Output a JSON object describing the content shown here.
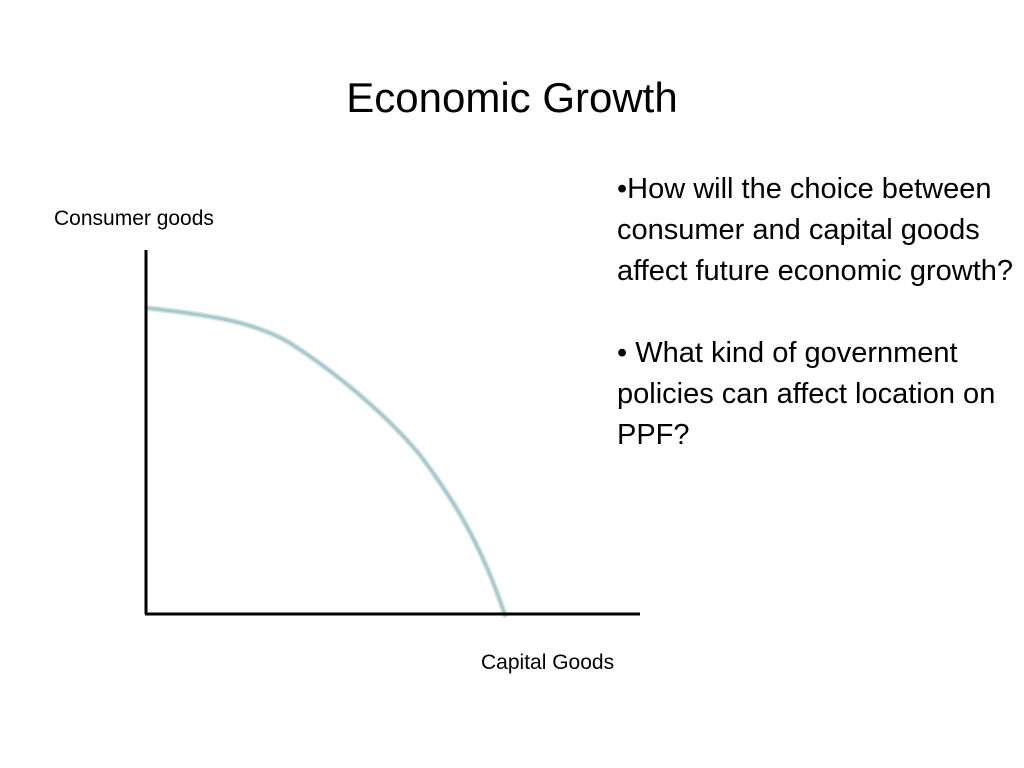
{
  "slide": {
    "title": "Economic Growth"
  },
  "diagram": {
    "y_axis_label": "Consumer goods",
    "x_axis_label": "Capital Goods",
    "curve_color": "#a9c9cc",
    "axis_color": "#000000"
  },
  "bullets": [
    {
      "text": "•How will the choice between consumer and capital goods affect future economic growth?"
    },
    {
      "text": "• What kind of government policies can affect location on PPF?"
    }
  ]
}
